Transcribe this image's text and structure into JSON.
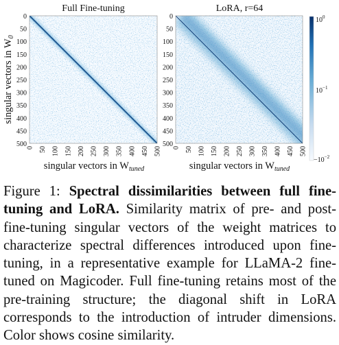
{
  "chart_data": [
    {
      "type": "heatmap",
      "title": "Full Fine-tuning",
      "xlabel": "singular vectors in W_tuned",
      "ylabel": "singular vectors in W_0",
      "xticks": [
        0,
        50,
        100,
        150,
        200,
        250,
        300,
        350,
        400,
        450,
        500
      ],
      "yticks": [
        0,
        50,
        100,
        150,
        200,
        250,
        300,
        350,
        400,
        450,
        500
      ],
      "xlim": [
        0,
        500
      ],
      "ylim": [
        0,
        500
      ],
      "pattern": "strong main diagonal, faint scattered off-diagonal noise"
    },
    {
      "type": "heatmap",
      "title": "LoRA, r=64",
      "xlabel": "singular vectors in W_tuned",
      "xticks": [
        0,
        50,
        100,
        150,
        200,
        250,
        300,
        350,
        400,
        450,
        500
      ],
      "yticks": [
        0,
        50,
        100,
        150,
        200,
        250,
        300,
        350,
        400,
        450,
        500
      ],
      "xlim": [
        0,
        500
      ],
      "ylim": [
        0,
        500
      ],
      "pattern": "thin main diagonal plus wide shifted diagonal band offset to the right"
    }
  ],
  "colorbar": {
    "scale": "log",
    "colormap": "Blues",
    "ticks": [
      "10^0",
      "10^-1",
      "-10^-2"
    ]
  },
  "panels": {
    "left_title": "Full Fine-tuning",
    "right_title": "LoRA, r=64",
    "ylabel_main": "singular vectors in W",
    "ylabel_sub": "0",
    "xlabel_main": "singular vectors in W",
    "xlabel_sub": "tuned",
    "ticks": [
      "0",
      "50",
      "100",
      "150",
      "200",
      "250",
      "300",
      "350",
      "400",
      "450",
      "500"
    ]
  },
  "colorbar_labels": {
    "top_base": "10",
    "top_exp": "0",
    "mid_base": "10",
    "mid_exp": "−1",
    "bot_base": "−10",
    "bot_exp": "−2"
  },
  "colors": {
    "colormap_low": "#f7fbff",
    "colormap_mid": "#6baed6",
    "colormap_high": "#08306b",
    "text": "#111111"
  },
  "caption": {
    "prefix": "Figure 1: ",
    "bold": "Spectral dissimilarities between full fine-tuning and LoRA.",
    "body": " Similarity matrix of pre- and post-fine-tuning singular vectors of the weight matrices to characterize spectral differences introduced upon fine-tuning, in a representative example for LLaMA-2 fine-tuned on Magicoder. Full fine-tuning retains most of the pre-training structure; the diagonal shift in LoRA corresponds to the introduction of intruder dimensions. Color shows cosine similarity."
  }
}
